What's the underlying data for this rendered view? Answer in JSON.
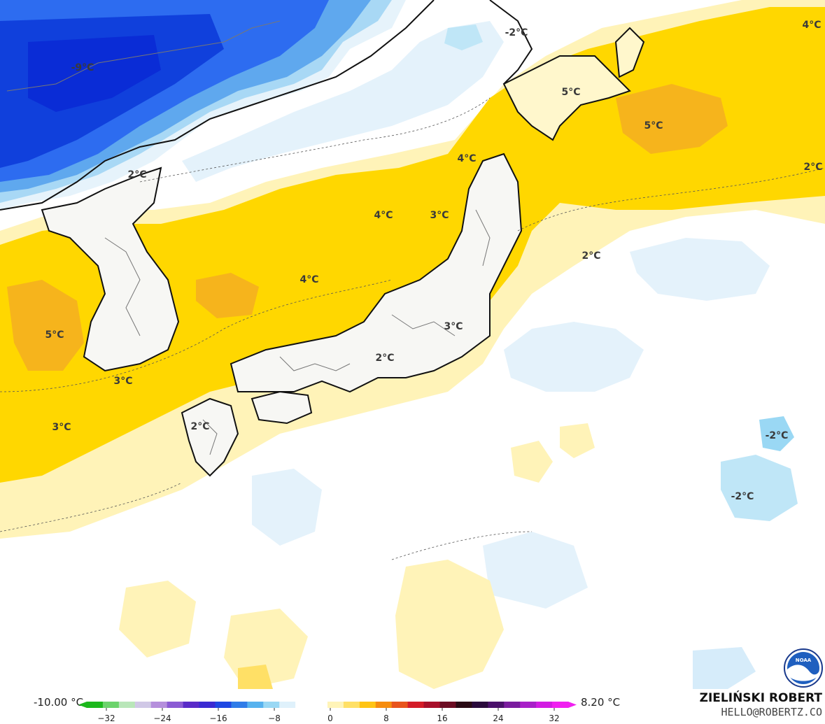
{
  "map": {
    "temperature_labels": [
      {
        "text": "-9°C",
        "tone": "cold"
      },
      {
        "text": "-2°C",
        "tone": "light"
      },
      {
        "text": "4°C",
        "tone": "warm"
      },
      {
        "text": "5°C",
        "tone": "warm"
      },
      {
        "text": "5°C",
        "tone": "warm"
      },
      {
        "text": "2°C",
        "tone": "neutral"
      },
      {
        "text": "2°C",
        "tone": "neutral"
      },
      {
        "text": "4°C",
        "tone": "warm"
      },
      {
        "text": "3°C",
        "tone": "warm"
      },
      {
        "text": "2°C",
        "tone": "neutral"
      },
      {
        "text": "4°C",
        "tone": "warm"
      },
      {
        "text": "4°C",
        "tone": "warm"
      },
      {
        "text": "3°C",
        "tone": "warm"
      },
      {
        "text": "5°C",
        "tone": "warm"
      },
      {
        "text": "2°C",
        "tone": "warm"
      },
      {
        "text": "3°C",
        "tone": "warm"
      },
      {
        "text": "2°C",
        "tone": "warm"
      },
      {
        "text": "3°C",
        "tone": "warm"
      },
      {
        "text": "-2°C",
        "tone": "light"
      },
      {
        "text": "-2°C",
        "tone": "light"
      }
    ],
    "colors": {
      "deep_cold": "#0a2cd6",
      "cold": "#2d6cf0",
      "cool": "#7fc4f2",
      "light_blue": "#d6ecfa",
      "neutral": "#ffffff",
      "pale_yellow": "#fff1b0",
      "yellow": "#ffd700",
      "orange": "#f6b41c",
      "land_line": "#111111",
      "border_line": "#555555"
    },
    "logo": {
      "icon": "noaa-logo",
      "text": "NOAA"
    }
  },
  "legend": {
    "min_label": "-10.00 °C",
    "max_label": "8.20 °C",
    "ticks": [
      "−32",
      "−24",
      "−16",
      "−8",
      "0",
      "8",
      "16",
      "24",
      "32"
    ],
    "ramp_colors": [
      "#1cb81c",
      "#6bd36b",
      "#b9e6b9",
      "#d0c8e6",
      "#b58fdc",
      "#8b5bd4",
      "#5a2bc8",
      "#3b2bd2",
      "#1f48e2",
      "#2f7ce8",
      "#57b2ee",
      "#9ad8f4",
      "#dff1fb",
      "#ffffff",
      "#ffffff",
      "#fff4b8",
      "#ffe066",
      "#ffc414",
      "#f68c0e",
      "#e8541c",
      "#d41c28",
      "#a8102a",
      "#6b0c22",
      "#2a0a14",
      "#2a0a3c",
      "#4a106a",
      "#7a1c9e",
      "#a820c8",
      "#d21ce2",
      "#f020f0"
    ]
  },
  "credit": {
    "name": "ZIELIŃSKI ROBERT",
    "email": "HELLO@ROBERTZ.CO"
  }
}
